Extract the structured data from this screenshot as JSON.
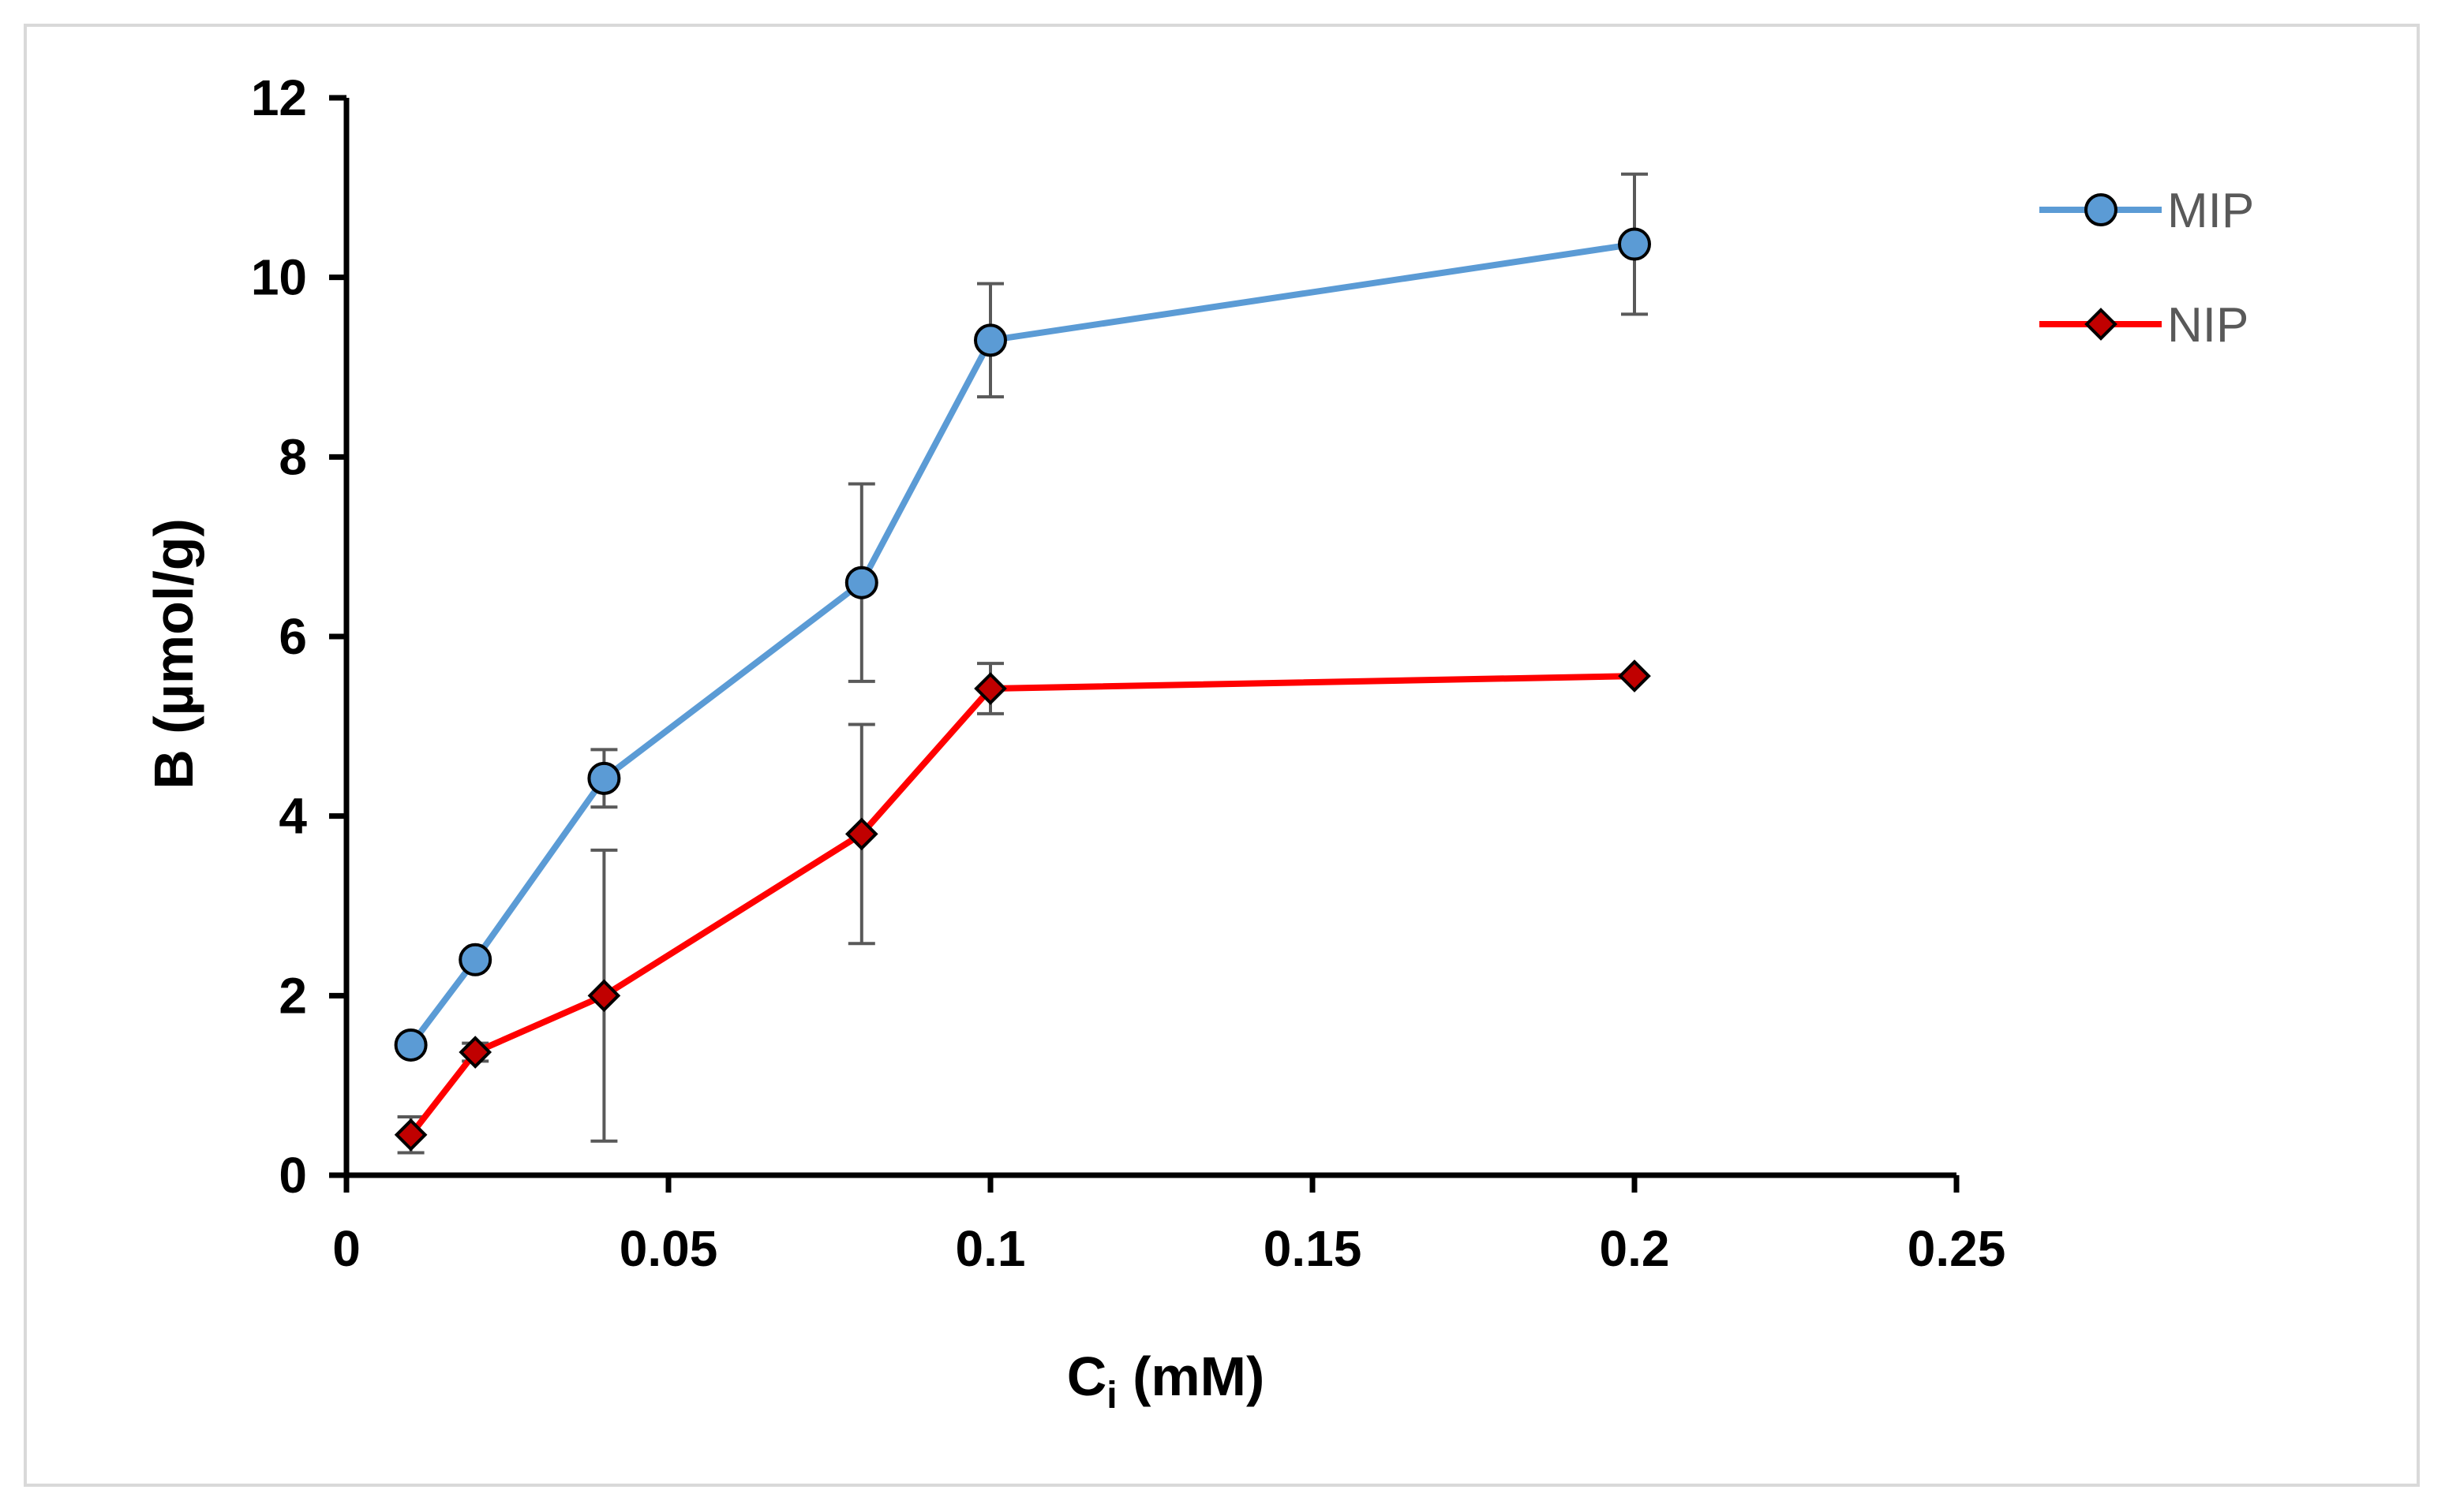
{
  "chart_data": {
    "type": "line",
    "title": "",
    "xlabel": "C",
    "xlabel_subscript": "i",
    "xlabel_suffix": " (mM)",
    "ylabel": "B (µmol/g)",
    "xlim": [
      0,
      0.25
    ],
    "ylim": [
      0,
      12
    ],
    "x_ticks": [
      0,
      0.05,
      0.1,
      0.15,
      0.2,
      0.25
    ],
    "x_tick_labels": [
      "0",
      "0.05",
      "0.1",
      "0.15",
      "0.2",
      "0.25"
    ],
    "y_ticks": [
      0,
      2,
      4,
      6,
      8,
      10,
      12
    ],
    "y_tick_labels": [
      "0",
      "2",
      "4",
      "6",
      "8",
      "10",
      "12"
    ],
    "grid": false,
    "legend_position": "top-right",
    "series": [
      {
        "name": "MIP",
        "color": "#5b9bd5",
        "marker": "circle",
        "marker_fill": "#5b9bd5",
        "x": [
          0.01,
          0.02,
          0.04,
          0.08,
          0.1,
          0.2
        ],
        "values": [
          1.45,
          2.4,
          4.42,
          6.6,
          9.3,
          10.37
        ],
        "errors": [
          0,
          0,
          0.32,
          1.1,
          0.63,
          0.78
        ]
      },
      {
        "name": "NIP",
        "color": "#ff0000",
        "marker": "diamond",
        "marker_fill": "#c00000",
        "x": [
          0.01,
          0.02,
          0.04,
          0.08,
          0.1,
          0.2
        ],
        "values": [
          0.45,
          1.37,
          2.0,
          3.8,
          5.42,
          5.56
        ],
        "errors": [
          0.2,
          0.1,
          1.62,
          1.22,
          0.28,
          0
        ]
      }
    ]
  }
}
